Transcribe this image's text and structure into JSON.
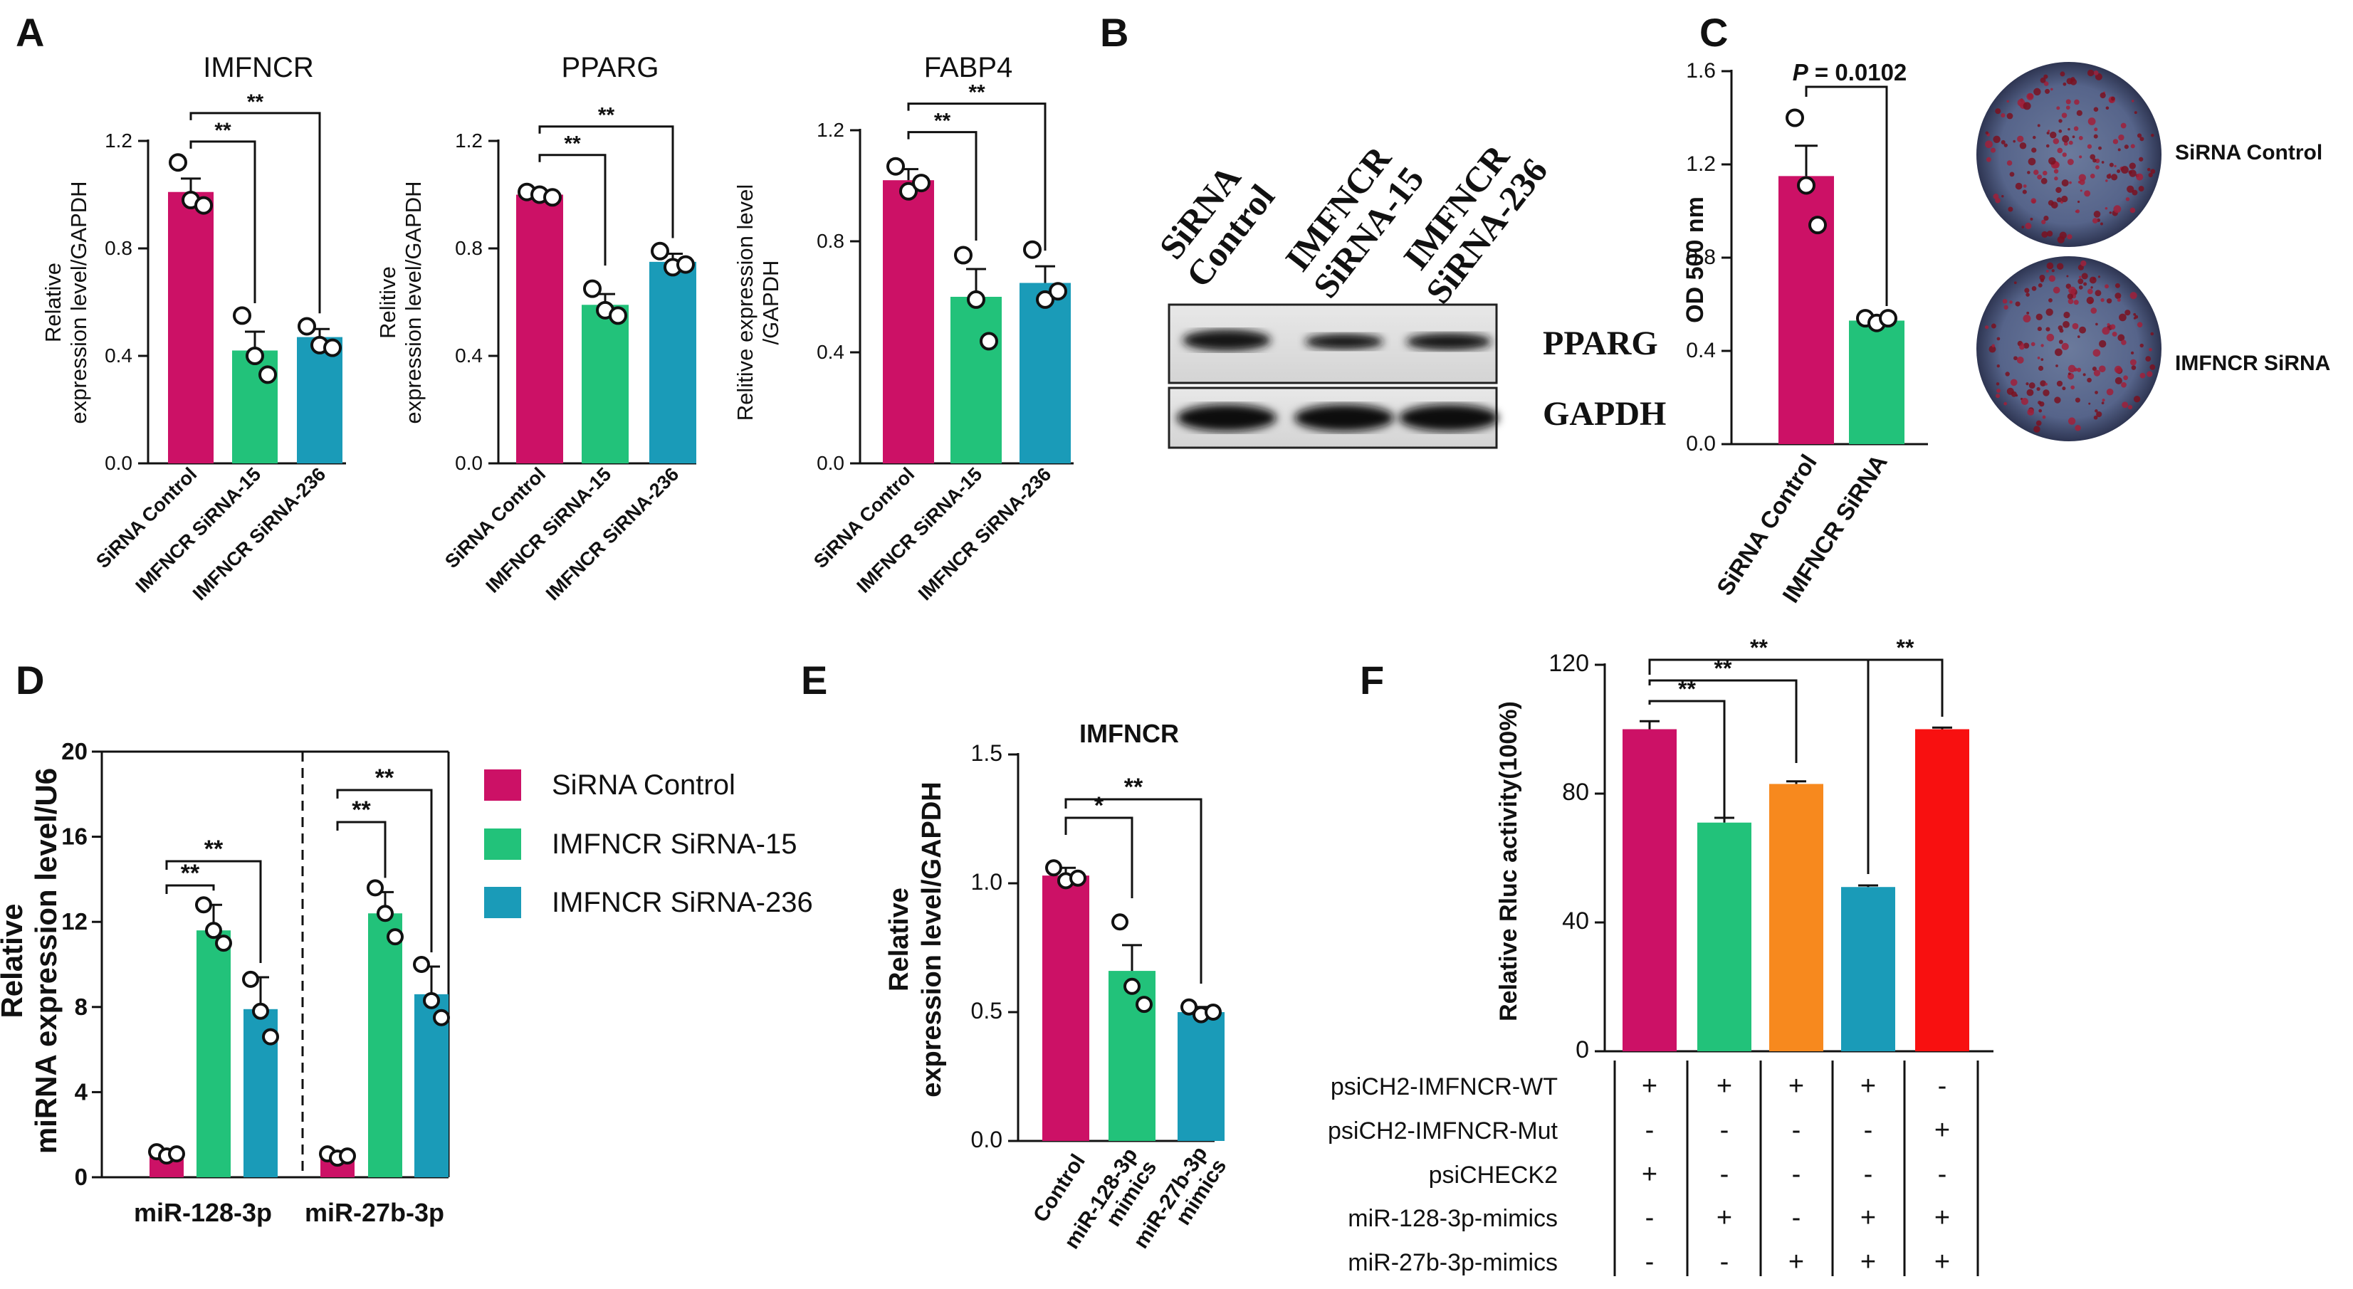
{
  "colors": {
    "magenta": "#CC1166",
    "green": "#22C27A",
    "teal": "#1A9BB8",
    "orange": "#F7891E",
    "red": "#F81010"
  },
  "panel_letters": [
    "A",
    "B",
    "C",
    "D",
    "E",
    "F"
  ],
  "chart_data": [
    {
      "id": "A1",
      "type": "bar",
      "title": "IMFNCR",
      "ylabel": "Relative\nexpression level/GAPDH",
      "categories": [
        "SiRNA Control",
        "IMFNCR SiRNA-15",
        "IMFNCR SiRNA-236"
      ],
      "values": [
        1.01,
        0.42,
        0.47
      ],
      "errors": [
        0.05,
        0.07,
        0.03
      ],
      "points": [
        [
          1.12,
          0.98,
          0.96
        ],
        [
          0.55,
          0.4,
          0.33
        ],
        [
          0.51,
          0.44,
          0.43
        ]
      ],
      "ylim": [
        0,
        1.2
      ],
      "yticks": [
        "0.0",
        "0.4",
        "0.8",
        "1.2"
      ],
      "significance": [
        {
          "a": 0,
          "b": 1,
          "label": "**"
        },
        {
          "a": 0,
          "b": 2,
          "label": "**"
        }
      ]
    },
    {
      "id": "A2",
      "type": "bar",
      "title": "PPARG",
      "ylabel": "Relitive\nexpression level/GAPDH",
      "categories": [
        "SiRNA Control",
        "IMFNCR SiRNA-15",
        "IMFNCR SiRNA-236"
      ],
      "values": [
        1.0,
        0.59,
        0.75
      ],
      "errors": [
        0.01,
        0.04,
        0.03
      ],
      "points": [
        [
          1.01,
          1.0,
          0.99
        ],
        [
          0.65,
          0.57,
          0.55
        ],
        [
          0.79,
          0.73,
          0.74
        ]
      ],
      "ylim": [
        0,
        1.2
      ],
      "yticks": [
        "0.0",
        "0.4",
        "0.8",
        "1.2"
      ],
      "significance": [
        {
          "a": 0,
          "b": 1,
          "label": "**"
        },
        {
          "a": 0,
          "b": 2,
          "label": "**"
        }
      ]
    },
    {
      "id": "A3",
      "type": "bar",
      "title": "FABP4",
      "ylabel": "Relitive expression level\n/GAPDH",
      "categories": [
        "SiRNA Control",
        "IMFNCR SiRNA-15",
        "IMFNCR SiRNA-236"
      ],
      "values": [
        1.02,
        0.6,
        0.65
      ],
      "errors": [
        0.04,
        0.1,
        0.06
      ],
      "points": [
        [
          1.07,
          0.98,
          1.01
        ],
        [
          0.75,
          0.59,
          0.44
        ],
        [
          0.77,
          0.59,
          0.62
        ]
      ],
      "ylim": [
        0,
        1.2
      ],
      "yticks": [
        "0.0",
        "0.4",
        "0.8",
        "1.2"
      ],
      "significance": [
        {
          "a": 0,
          "b": 1,
          "label": "**"
        },
        {
          "a": 0,
          "b": 2,
          "label": "**"
        }
      ]
    },
    {
      "id": "C",
      "type": "bar",
      "title": "",
      "ylabel": "OD 500 nm",
      "categories": [
        "SiRNA Control",
        "IMFNCR SiRNA"
      ],
      "values": [
        1.15,
        0.53
      ],
      "errors": [
        0.13,
        0.02
      ],
      "points": [
        [
          1.4,
          1.11,
          0.94
        ],
        [
          0.54,
          0.52,
          0.54
        ]
      ],
      "ylim": [
        0,
        1.6
      ],
      "yticks": [
        "0.0",
        "0.4",
        "0.8",
        "1.2",
        "1.6"
      ],
      "pvalue": "= 0.0102",
      "pvalue_prefix": "P"
    },
    {
      "id": "D",
      "type": "bar",
      "title": "",
      "ylabel": "Relative\nmiRNA expression level/U6",
      "groups": [
        "miR-128-3p",
        "miR-27b-3p"
      ],
      "series": [
        {
          "name": "SiRNA Control",
          "values": [
            1.1,
            1.0
          ],
          "errors": [
            0.2,
            0.15
          ],
          "points": [
            [
              1.2,
              1.0,
              1.1
            ],
            [
              1.1,
              0.9,
              1.0
            ]
          ]
        },
        {
          "name": "IMFNCR SiRNA-15",
          "values": [
            11.6,
            12.4
          ],
          "errors": [
            1.2,
            1.0
          ],
          "points": [
            [
              12.8,
              11.6,
              11.0
            ],
            [
              13.6,
              12.4,
              11.3
            ]
          ]
        },
        {
          "name": "IMFNCR SiRNA-236",
          "values": [
            7.9,
            8.6
          ],
          "errors": [
            1.5,
            1.3
          ],
          "points": [
            [
              9.3,
              7.8,
              6.6
            ],
            [
              10.0,
              8.3,
              7.5
            ]
          ]
        }
      ],
      "ylim": [
        0,
        20
      ],
      "yticks": [
        "0",
        "4",
        "8",
        "12",
        "16",
        "20"
      ],
      "significance": [
        {
          "group": 0,
          "a": 0,
          "b": 1,
          "label": "**"
        },
        {
          "group": 0,
          "a": 0,
          "b": 2,
          "label": "**"
        },
        {
          "group": 1,
          "a": 0,
          "b": 1,
          "label": "**"
        },
        {
          "group": 1,
          "a": 0,
          "b": 2,
          "label": "**"
        }
      ]
    },
    {
      "id": "E",
      "type": "bar",
      "title": "IMFNCR",
      "ylabel": "Relative\nexpression level/GAPDH",
      "categories": [
        "Control",
        "miR-128-3p\nmimics",
        "miR-27b-3p\nmimics"
      ],
      "values": [
        1.03,
        0.66,
        0.5
      ],
      "errors": [
        0.03,
        0.1,
        0.02
      ],
      "points": [
        [
          1.06,
          1.01,
          1.02
        ],
        [
          0.85,
          0.6,
          0.53
        ],
        [
          0.52,
          0.49,
          0.5
        ]
      ],
      "ylim": [
        0,
        1.5
      ],
      "yticks": [
        "0.0",
        "0.5",
        "1.0",
        "1.5"
      ],
      "significance": [
        {
          "a": 0,
          "b": 1,
          "label": "*"
        },
        {
          "a": 0,
          "b": 2,
          "label": "**"
        }
      ]
    },
    {
      "id": "F",
      "type": "bar",
      "title": "",
      "ylabel": "Relative Rluc activity(100%)",
      "values": [
        100,
        71,
        83,
        51,
        100
      ],
      "errors": [
        2.5,
        1.5,
        0.8,
        0.5,
        0.5
      ],
      "ylim": [
        0,
        120
      ],
      "yticks": [
        "0",
        "40",
        "80",
        "120"
      ],
      "significance": [
        {
          "a": 0,
          "b": 1,
          "label": "**"
        },
        {
          "a": 0,
          "b": 2,
          "label": "**"
        },
        {
          "a": 0,
          "b": 3,
          "label": "**"
        },
        {
          "a": 3,
          "b": 4,
          "label": "**"
        }
      ],
      "table_rows": [
        {
          "label": "psiCH2-IMFNCR-WT",
          "marks": [
            "+",
            "+",
            "+",
            "+",
            "-"
          ]
        },
        {
          "label": "psiCH2-IMFNCR-Mut",
          "marks": [
            "-",
            "-",
            "-",
            "-",
            "+"
          ]
        },
        {
          "label": "psiCHECK2",
          "marks": [
            "+",
            "-",
            "-",
            "-",
            "-"
          ]
        },
        {
          "label": "miR-128-3p-mimics",
          "marks": [
            "-",
            "+",
            "-",
            "+",
            "+"
          ]
        },
        {
          "label": "miR-27b-3p-mimics",
          "marks": [
            "-",
            "-",
            "+",
            "+",
            "+"
          ]
        }
      ]
    }
  ],
  "western_blot": {
    "lanes": [
      "SiRNA\nControl",
      "IMFNCR\nSiRNA-15",
      "IMFNCR\nSiRNA-236"
    ],
    "bands": [
      "PPARG",
      "GAPDH"
    ]
  },
  "staining_images": [
    "SiRNA Control",
    "IMFNCR SiRNA"
  ]
}
